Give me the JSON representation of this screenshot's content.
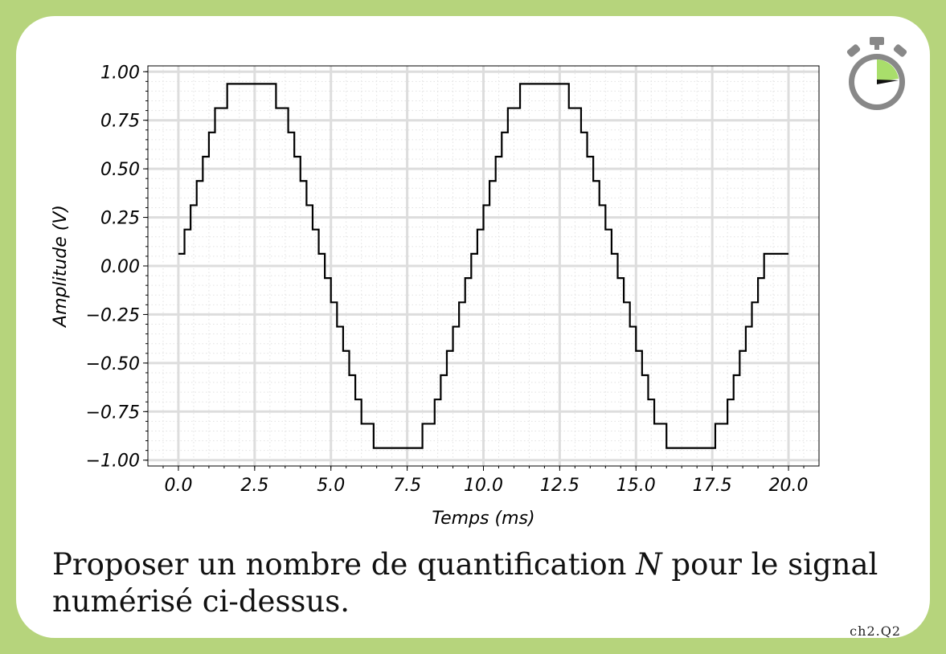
{
  "chart_data": {
    "type": "line",
    "title": "",
    "xlabel": "Temps (ms)",
    "ylabel": "Amplitude (V)",
    "xlim": [
      -1,
      21
    ],
    "ylim": [
      -1.03,
      1.03
    ],
    "xticks": [
      "0.0",
      "2.5",
      "5.0",
      "7.5",
      "10.0",
      "12.5",
      "15.0",
      "17.5",
      "20.0"
    ],
    "yticks": [
      "−1.00",
      "−0.75",
      "−0.50",
      "−0.25",
      "0.00",
      "0.25",
      "0.50",
      "0.75",
      "1.00"
    ],
    "grid": true,
    "series": [
      {
        "signal": "quantized sine, period 10 ms, 16 levels (step 0.125 V)",
        "x": [
          0.0,
          0.2,
          0.4,
          0.6,
          0.8,
          1.0,
          1.2,
          1.4,
          1.6,
          1.8,
          2.0,
          2.2,
          2.4,
          2.6,
          2.8,
          3.0,
          3.2,
          3.4,
          3.6,
          3.8,
          4.0,
          4.2,
          4.4,
          4.6,
          4.8,
          5.0,
          5.2,
          5.4,
          5.6,
          5.8,
          6.0,
          6.2,
          6.4,
          6.6,
          6.8,
          7.0,
          7.2,
          7.4,
          7.6,
          7.8,
          8.0,
          8.2,
          8.4,
          8.6,
          8.8,
          9.0,
          9.2,
          9.4,
          9.6,
          9.8,
          10.0,
          10.2,
          10.4,
          10.6,
          10.8,
          11.0,
          11.2,
          11.4,
          11.6,
          11.8,
          12.0,
          12.2,
          12.4,
          12.6,
          12.8,
          13.0,
          13.2,
          13.4,
          13.6,
          13.8,
          14.0,
          14.2,
          14.4,
          14.6,
          14.8,
          15.0,
          15.2,
          15.4,
          15.6,
          15.8,
          16.0,
          16.2,
          16.4,
          16.6,
          16.8,
          17.0,
          17.2,
          17.4,
          17.6,
          17.8,
          18.0,
          18.2,
          18.4,
          18.6,
          18.8,
          19.0,
          19.2,
          19.4,
          19.6,
          19.8,
          20.0
        ],
        "y": [
          0.0625,
          0.1875,
          0.3125,
          0.4375,
          0.5625,
          0.6875,
          0.8125,
          0.8125,
          0.9375,
          0.9375,
          0.9375,
          0.9375,
          0.9375,
          0.9375,
          0.9375,
          0.9375,
          0.8125,
          0.8125,
          0.6875,
          0.5625,
          0.4375,
          0.3125,
          0.1875,
          0.0625,
          -0.0625,
          -0.1875,
          -0.3125,
          -0.4375,
          -0.5625,
          -0.6875,
          -0.8125,
          -0.8125,
          -0.9375,
          -0.9375,
          -0.9375,
          -0.9375,
          -0.9375,
          -0.9375,
          -0.9375,
          -0.9375,
          -0.8125,
          -0.8125,
          -0.6875,
          -0.5625,
          -0.4375,
          -0.3125,
          -0.1875,
          -0.0625,
          0.0625,
          0.1875,
          0.3125,
          0.4375,
          0.5625,
          0.6875,
          0.8125,
          0.8125,
          0.9375,
          0.9375,
          0.9375,
          0.9375,
          0.9375,
          0.9375,
          0.9375,
          0.9375,
          0.8125,
          0.8125,
          0.6875,
          0.5625,
          0.4375,
          0.3125,
          0.1875,
          0.0625,
          -0.0625,
          -0.1875,
          -0.3125,
          -0.4375,
          -0.5625,
          -0.6875,
          -0.8125,
          -0.8125,
          -0.9375,
          -0.9375,
          -0.9375,
          -0.9375,
          -0.9375,
          -0.9375,
          -0.9375,
          -0.9375,
          -0.8125,
          -0.8125,
          -0.6875,
          -0.5625,
          -0.4375,
          -0.3125,
          -0.1875,
          -0.0625,
          0.0625,
          0.0625,
          0.0625,
          0.0625,
          0.0625
        ],
        "color": "#000000"
      }
    ]
  },
  "question": {
    "text_before": "Proposer un nombre de quantification ",
    "math_symbol": "N",
    "text_after": " pour le signal numérisé ci-dessus."
  },
  "card_code": "ch2.Q2",
  "colors": {
    "border": "#b6d47c",
    "timer_fill": "#a9de6b",
    "timer_body": "#888888",
    "grid": "#dddddd"
  },
  "icons": {
    "timer": "stopwatch-icon"
  }
}
